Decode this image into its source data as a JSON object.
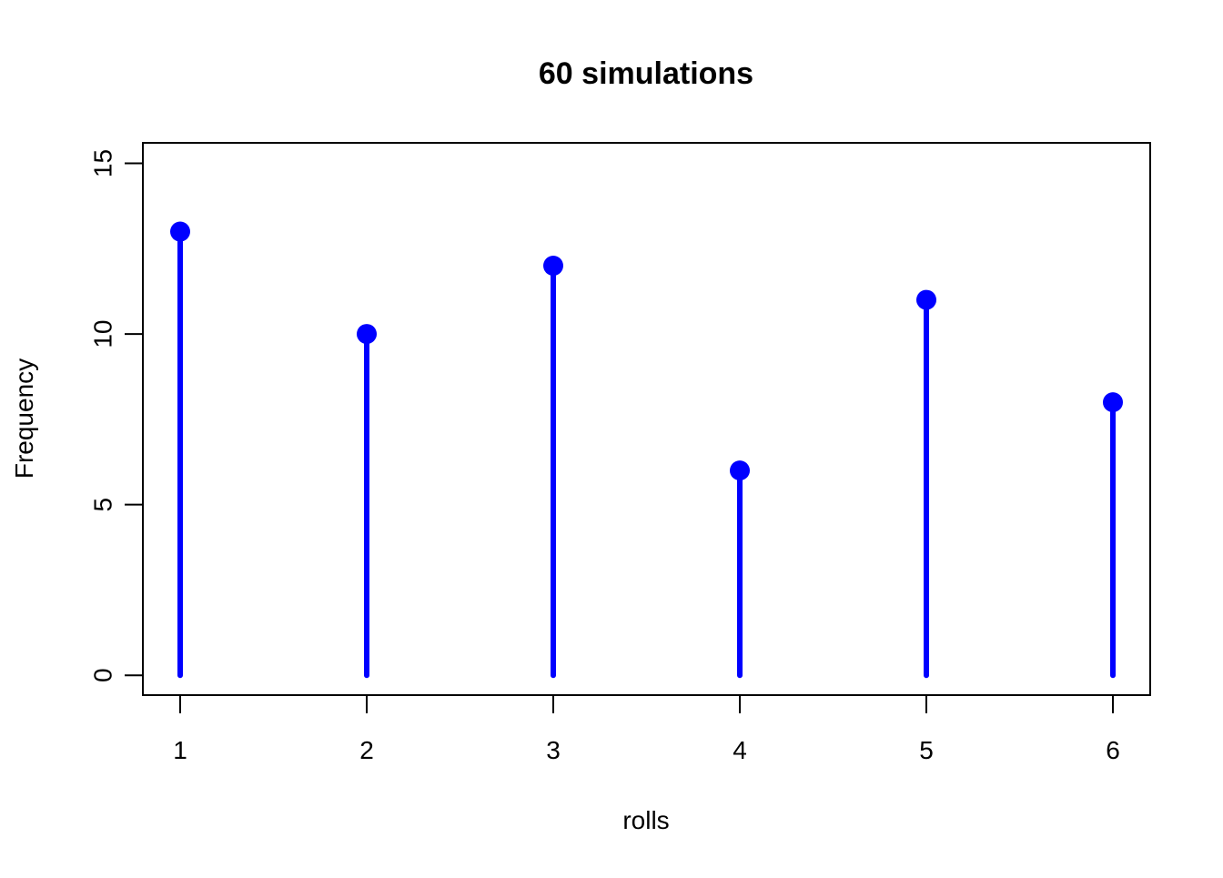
{
  "chart_data": {
    "type": "bar",
    "style": "lollipop",
    "title": "60 simulations",
    "xlabel": "rolls",
    "ylabel": "Frequency",
    "categories": [
      "1",
      "2",
      "3",
      "4",
      "5",
      "6"
    ],
    "x": [
      1,
      2,
      3,
      4,
      5,
      6
    ],
    "values": [
      13,
      10,
      12,
      6,
      11,
      8
    ],
    "xlim": [
      0.8,
      6.2
    ],
    "ylim": [
      -0.58,
      15.6
    ],
    "x_ticks": [
      1,
      2,
      3,
      4,
      5,
      6
    ],
    "y_ticks": [
      0,
      5,
      10,
      15
    ],
    "grid": false,
    "legend": "none",
    "color": "#0000ff"
  }
}
